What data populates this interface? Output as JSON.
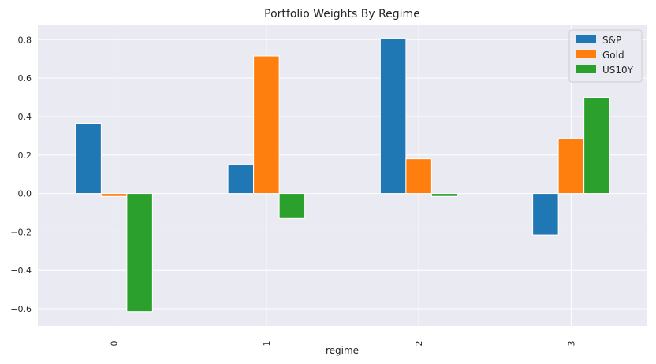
{
  "chart_data": {
    "type": "bar",
    "title": "Portfolio Weights By Regime",
    "xlabel": "regime",
    "ylabel": "",
    "categories": [
      "0",
      "1",
      "2",
      "3"
    ],
    "series": [
      {
        "name": "S&P",
        "color": "#1f77b4",
        "values": [
          0.365,
          0.15,
          0.805,
          -0.215
        ]
      },
      {
        "name": "Gold",
        "color": "#ff7f0e",
        "values": [
          -0.015,
          0.715,
          0.18,
          0.285
        ]
      },
      {
        "name": "US10Y",
        "color": "#2ca02c",
        "values": [
          -0.615,
          -0.13,
          -0.015,
          0.5
        ]
      }
    ],
    "ylim": [
      -0.69,
      0.875
    ],
    "yticks": [
      -0.6,
      -0.4,
      -0.2,
      0.0,
      0.2,
      0.4,
      0.6,
      0.8
    ],
    "ytick_labels": [
      "−0.6",
      "−0.4",
      "−0.2",
      "0.0",
      "0.2",
      "0.4",
      "0.6",
      "0.8"
    ],
    "xtick_rotation": "vertical",
    "grid": true,
    "background": "#eaeaf2",
    "legend": "top-right"
  }
}
